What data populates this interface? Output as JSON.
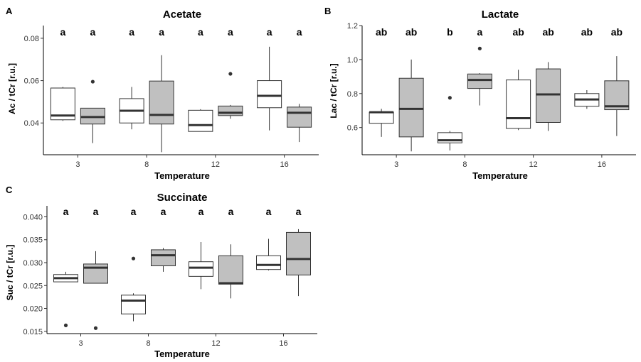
{
  "chart_data": [
    {
      "type": "boxplot",
      "panel": "A",
      "title": "Acetate",
      "xlabel": "Temperature",
      "ylabel": "Ac / tCr [r.u.]",
      "ylim": [
        0.025,
        0.086
      ],
      "yticks": [
        0.04,
        0.06,
        0.08
      ],
      "ytick_labels": [
        "0.04",
        "0.06",
        "0.08"
      ],
      "categories": [
        "3",
        "8",
        "12",
        "16"
      ],
      "fills": [
        "#ffffff",
        "#c0c0c0"
      ],
      "boxes": [
        {
          "category": "3",
          "fill": "#ffffff",
          "whisker_low": 0.041,
          "q1": 0.0415,
          "median": 0.0435,
          "q3": 0.0565,
          "whisker_high": 0.057,
          "outliers": [],
          "sig": "a"
        },
        {
          "category": "3",
          "fill": "#c0c0c0",
          "whisker_low": 0.0305,
          "q1": 0.0395,
          "median": 0.0428,
          "q3": 0.047,
          "whisker_high": 0.047,
          "outliers": [
            0.0595
          ],
          "sig": "a"
        },
        {
          "category": "8",
          "fill": "#ffffff",
          "whisker_low": 0.037,
          "q1": 0.04,
          "median": 0.0458,
          "q3": 0.0515,
          "whisker_high": 0.057,
          "outliers": [],
          "sig": "a"
        },
        {
          "category": "8",
          "fill": "#c0c0c0",
          "whisker_low": 0.0262,
          "q1": 0.0395,
          "median": 0.0438,
          "q3": 0.0598,
          "whisker_high": 0.072,
          "outliers": [],
          "sig": "a"
        },
        {
          "category": "12",
          "fill": "#ffffff",
          "whisker_low": 0.036,
          "q1": 0.036,
          "median": 0.039,
          "q3": 0.046,
          "whisker_high": 0.0465,
          "outliers": [],
          "sig": "a"
        },
        {
          "category": "12",
          "fill": "#c0c0c0",
          "whisker_low": 0.042,
          "q1": 0.0435,
          "median": 0.0448,
          "q3": 0.048,
          "whisker_high": 0.0485,
          "outliers": [
            0.0632
          ],
          "sig": "a"
        },
        {
          "category": "16",
          "fill": "#ffffff",
          "whisker_low": 0.0365,
          "q1": 0.0472,
          "median": 0.0528,
          "q3": 0.06,
          "whisker_high": 0.076,
          "outliers": [],
          "sig": "a"
        },
        {
          "category": "16",
          "fill": "#c0c0c0",
          "whisker_low": 0.031,
          "q1": 0.038,
          "median": 0.0448,
          "q3": 0.0475,
          "whisker_high": 0.049,
          "outliers": [],
          "sig": "a"
        }
      ]
    },
    {
      "type": "boxplot",
      "panel": "B",
      "title": "Lactate",
      "xlabel": "Temperature",
      "ylabel": "Lac / tCr [r.u.]",
      "ylim": [
        0.44,
        1.2
      ],
      "yticks": [
        0.6,
        0.8,
        1.0,
        1.2
      ],
      "ytick_labels": [
        "0.6",
        "0.8",
        "1.0",
        "1.2"
      ],
      "categories": [
        "3",
        "8",
        "12",
        "16"
      ],
      "fills": [
        "#ffffff",
        "#c0c0c0"
      ],
      "boxes": [
        {
          "category": "3",
          "fill": "#ffffff",
          "whisker_low": 0.545,
          "q1": 0.625,
          "median": 0.69,
          "q3": 0.69,
          "whisker_high": 0.71,
          "outliers": [],
          "sig": "ab"
        },
        {
          "category": "3",
          "fill": "#c0c0c0",
          "whisker_low": 0.46,
          "q1": 0.545,
          "median": 0.71,
          "q3": 0.89,
          "whisker_high": 1.0,
          "outliers": [],
          "sig": "ab"
        },
        {
          "category": "8",
          "fill": "#ffffff",
          "whisker_low": 0.465,
          "q1": 0.51,
          "median": 0.525,
          "q3": 0.57,
          "whisker_high": 0.58,
          "outliers": [
            0.775
          ],
          "sig": "b"
        },
        {
          "category": "8",
          "fill": "#c0c0c0",
          "whisker_low": 0.73,
          "q1": 0.83,
          "median": 0.88,
          "q3": 0.915,
          "whisker_high": 0.92,
          "outliers": [
            1.065
          ],
          "sig": "a"
        },
        {
          "category": "12",
          "fill": "#ffffff",
          "whisker_low": 0.585,
          "q1": 0.595,
          "median": 0.655,
          "q3": 0.88,
          "whisker_high": 0.94,
          "outliers": [],
          "sig": "ab"
        },
        {
          "category": "12",
          "fill": "#c0c0c0",
          "whisker_low": 0.58,
          "q1": 0.63,
          "median": 0.795,
          "q3": 0.945,
          "whisker_high": 0.985,
          "outliers": [],
          "sig": "ab"
        },
        {
          "category": "16",
          "fill": "#ffffff",
          "whisker_low": 0.71,
          "q1": 0.725,
          "median": 0.765,
          "q3": 0.8,
          "whisker_high": 0.82,
          "outliers": [],
          "sig": "ab"
        },
        {
          "category": "16",
          "fill": "#c0c0c0",
          "whisker_low": 0.55,
          "q1": 0.705,
          "median": 0.725,
          "q3": 0.875,
          "whisker_high": 1.02,
          "outliers": [],
          "sig": "ab"
        }
      ]
    },
    {
      "type": "boxplot",
      "panel": "C",
      "title": "Succinate",
      "xlabel": "Temperature",
      "ylabel": "Suc / tCr [r.u.]",
      "ylim": [
        0.0145,
        0.0424
      ],
      "yticks": [
        0.015,
        0.02,
        0.025,
        0.03,
        0.035,
        0.04
      ],
      "ytick_labels": [
        "0.015",
        "0.020",
        "0.025",
        "0.030",
        "0.035",
        "0.040"
      ],
      "categories": [
        "3",
        "8",
        "12",
        "16"
      ],
      "fills": [
        "#ffffff",
        "#c0c0c0"
      ],
      "boxes": [
        {
          "category": "3",
          "fill": "#ffffff",
          "whisker_low": 0.0258,
          "q1": 0.0258,
          "median": 0.0266,
          "q3": 0.0274,
          "whisker_high": 0.028,
          "outliers": [
            0.0163
          ],
          "sig": "a"
        },
        {
          "category": "3",
          "fill": "#c0c0c0",
          "whisker_low": 0.0255,
          "q1": 0.0255,
          "median": 0.0289,
          "q3": 0.0297,
          "whisker_high": 0.0325,
          "outliers": [
            0.0157
          ],
          "sig": "a"
        },
        {
          "category": "8",
          "fill": "#ffffff",
          "whisker_low": 0.0172,
          "q1": 0.0188,
          "median": 0.0217,
          "q3": 0.0229,
          "whisker_high": 0.0233,
          "outliers": [
            0.0309
          ],
          "sig": "a"
        },
        {
          "category": "8",
          "fill": "#c0c0c0",
          "whisker_low": 0.028,
          "q1": 0.0293,
          "median": 0.0316,
          "q3": 0.0328,
          "whisker_high": 0.0332,
          "outliers": [],
          "sig": "a"
        },
        {
          "category": "12",
          "fill": "#ffffff",
          "whisker_low": 0.0242,
          "q1": 0.027,
          "median": 0.0289,
          "q3": 0.0302,
          "whisker_high": 0.0345,
          "outliers": [],
          "sig": "a"
        },
        {
          "category": "12",
          "fill": "#c0c0c0",
          "whisker_low": 0.0222,
          "q1": 0.0253,
          "median": 0.0255,
          "q3": 0.0315,
          "whisker_high": 0.034,
          "outliers": [],
          "sig": "a"
        },
        {
          "category": "16",
          "fill": "#ffffff",
          "whisker_low": 0.0283,
          "q1": 0.0285,
          "median": 0.0295,
          "q3": 0.0315,
          "whisker_high": 0.0352,
          "outliers": [],
          "sig": "a"
        },
        {
          "category": "16",
          "fill": "#c0c0c0",
          "whisker_low": 0.0227,
          "q1": 0.0273,
          "median": 0.0308,
          "q3": 0.0366,
          "whisker_high": 0.0373,
          "outliers": [],
          "sig": "a"
        }
      ]
    }
  ]
}
